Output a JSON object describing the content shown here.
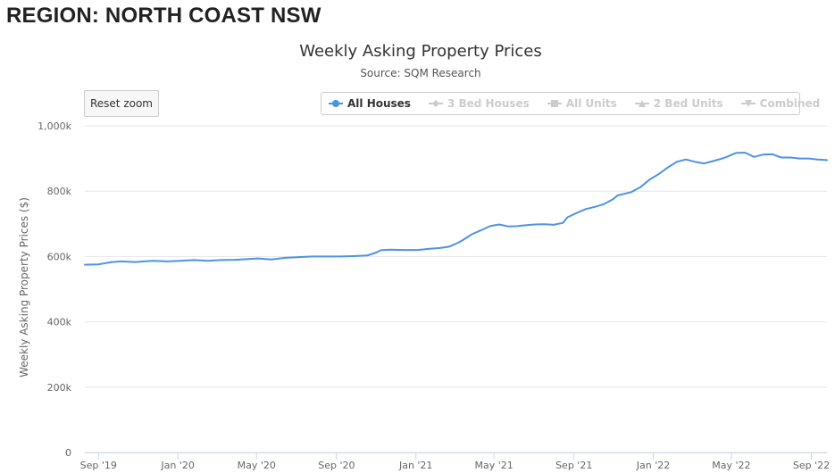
{
  "page": {
    "region_title": "REGION: NORTH COAST NSW"
  },
  "controls": {
    "reset_zoom_label": "Reset zoom"
  },
  "legend": {
    "items": [
      {
        "label": "All Houses",
        "symbol": "circle",
        "color": "#4c93e4",
        "visible": true
      },
      {
        "label": "3 Bed Houses",
        "symbol": "diamond",
        "color": "#cccccc",
        "visible": false
      },
      {
        "label": "All Units",
        "symbol": "square",
        "color": "#cccccc",
        "visible": false
      },
      {
        "label": "2 Bed Units",
        "symbol": "triangle",
        "color": "#cccccc",
        "visible": false
      },
      {
        "label": "Combined",
        "symbol": "triangle-down",
        "color": "#cccccc",
        "visible": false
      }
    ]
  },
  "chart_data": {
    "type": "line",
    "title": "Weekly Asking Property Prices",
    "subtitle": "Source: SQM Research",
    "xlabel": "",
    "ylabel": "Weekly Asking Property Prices ($)",
    "ylim": [
      0,
      1000000
    ],
    "y_ticks": [
      0,
      200000,
      400000,
      600000,
      800000,
      1000000
    ],
    "y_tick_labels": [
      "0",
      "200k",
      "400k",
      "600k",
      "800k",
      "1,000k"
    ],
    "x_range": [
      "2019-08-11",
      "2022-09-25"
    ],
    "x_ticks": [
      "2019-09-01",
      "2020-01-01",
      "2020-05-01",
      "2020-09-01",
      "2021-01-01",
      "2021-05-01",
      "2021-09-01",
      "2022-01-01",
      "2022-05-01",
      "2022-09-01"
    ],
    "x_tick_labels": [
      "Sep '19",
      "Jan '20",
      "May '20",
      "Sep '20",
      "Jan '21",
      "May '21",
      "Sep '21",
      "Jan '22",
      "May '22",
      "Sep '22"
    ],
    "grid": "horizontal",
    "legend_position": "top-right",
    "series": [
      {
        "name": "All Houses",
        "color": "#4c93e4",
        "x": [
          "2019-08-11",
          "2019-09-01",
          "2019-09-22",
          "2019-10-06",
          "2019-10-27",
          "2019-11-10",
          "2019-11-24",
          "2019-12-15",
          "2019-12-29",
          "2020-01-26",
          "2020-02-16",
          "2020-03-08",
          "2020-03-29",
          "2020-04-19",
          "2020-05-03",
          "2020-05-24",
          "2020-06-14",
          "2020-07-05",
          "2020-07-26",
          "2020-08-16",
          "2020-09-06",
          "2020-09-27",
          "2020-10-18",
          "2020-11-01",
          "2020-11-08",
          "2020-11-22",
          "2020-12-13",
          "2021-01-03",
          "2021-01-24",
          "2021-02-07",
          "2021-02-21",
          "2021-03-07",
          "2021-03-14",
          "2021-03-28",
          "2021-04-11",
          "2021-04-25",
          "2021-05-09",
          "2021-05-23",
          "2021-06-06",
          "2021-06-20",
          "2021-07-04",
          "2021-07-18",
          "2021-08-01",
          "2021-08-15",
          "2021-08-22",
          "2021-09-05",
          "2021-09-19",
          "2021-10-03",
          "2021-10-17",
          "2021-10-31",
          "2021-11-07",
          "2021-11-28",
          "2021-12-12",
          "2021-12-26",
          "2022-01-09",
          "2022-01-23",
          "2022-02-06",
          "2022-02-20",
          "2022-03-06",
          "2022-03-20",
          "2022-04-03",
          "2022-04-17",
          "2022-04-24",
          "2022-05-08",
          "2022-05-22",
          "2022-06-05",
          "2022-06-19",
          "2022-07-03",
          "2022-07-17",
          "2022-07-31",
          "2022-08-14",
          "2022-08-28",
          "2022-09-11",
          "2022-09-25"
        ],
        "values": [
          575000,
          576000,
          583000,
          585000,
          583000,
          585000,
          587000,
          585000,
          586000,
          589000,
          587000,
          589000,
          590000,
          592000,
          594000,
          591000,
          596000,
          598000,
          600000,
          600000,
          600000,
          601000,
          603000,
          612000,
          619000,
          621000,
          620000,
          620000,
          624000,
          626000,
          630000,
          642000,
          650000,
          668000,
          680000,
          693000,
          698000,
          692000,
          693000,
          696000,
          698000,
          699000,
          697000,
          703000,
          720000,
          733000,
          745000,
          752000,
          760000,
          775000,
          787000,
          797000,
          812000,
          835000,
          852000,
          872000,
          890000,
          897000,
          890000,
          885000,
          892000,
          900000,
          905000,
          917000,
          918000,
          905000,
          912000,
          913000,
          903000,
          903000,
          900000,
          900000,
          897000,
          895000
        ]
      }
    ]
  }
}
